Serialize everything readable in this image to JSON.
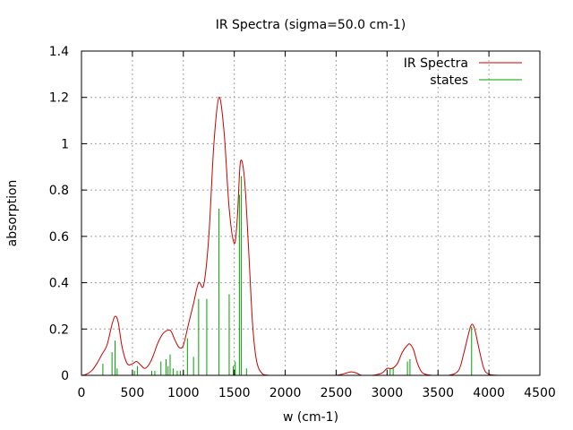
{
  "chart_data": {
    "type": "line",
    "title": "IR Spectra (sigma=50.0 cm-1)",
    "xlabel": "w (cm-1)",
    "ylabel": "absorption",
    "xlim": [
      0,
      4500
    ],
    "ylim": [
      0,
      1.4
    ],
    "xticks": [
      0,
      500,
      1000,
      1500,
      2000,
      2500,
      3000,
      3500,
      4000,
      4500
    ],
    "yticks": [
      0,
      0.2,
      0.4,
      0.6,
      0.8,
      1,
      1.2,
      1.4
    ],
    "xtick_labels": [
      "0",
      "500",
      "1000",
      "1500",
      "2000",
      "2500",
      "3000",
      "3500",
      "4000",
      "4500"
    ],
    "ytick_labels": [
      "0",
      "0.2",
      "0.4",
      "0.6",
      "0.8",
      "1",
      "1.2",
      "1.4"
    ],
    "grid": true,
    "legend_position": "top-right",
    "series": [
      {
        "name": "IR Spectra",
        "style": "line",
        "color": "#cc0000",
        "x": [
          0,
          50,
          100,
          150,
          200,
          250,
          300,
          330,
          360,
          400,
          450,
          500,
          540,
          580,
          620,
          660,
          700,
          750,
          800,
          850,
          880,
          920,
          960,
          1000,
          1050,
          1100,
          1150,
          1200,
          1250,
          1300,
          1350,
          1400,
          1450,
          1500,
          1530,
          1560,
          1600,
          1640,
          1680,
          1720,
          1780,
          1850,
          2000,
          2300,
          2500,
          2600,
          2650,
          2700,
          2750,
          2850,
          2950,
          3000,
          3050,
          3100,
          3150,
          3200,
          3225,
          3260,
          3300,
          3350,
          3450,
          3600,
          3700,
          3750,
          3800,
          3830,
          3860,
          3900,
          3950,
          4000,
          4100,
          4300,
          4500
        ],
        "y": [
          0,
          0.005,
          0.02,
          0.05,
          0.09,
          0.13,
          0.22,
          0.255,
          0.23,
          0.12,
          0.05,
          0.05,
          0.06,
          0.045,
          0.03,
          0.045,
          0.08,
          0.14,
          0.18,
          0.195,
          0.19,
          0.15,
          0.12,
          0.13,
          0.22,
          0.31,
          0.4,
          0.39,
          0.6,
          1.0,
          1.2,
          1.05,
          0.72,
          0.57,
          0.68,
          0.92,
          0.85,
          0.55,
          0.22,
          0.06,
          0.005,
          0,
          0,
          0,
          0,
          0.01,
          0.015,
          0.01,
          0,
          0,
          0.01,
          0.03,
          0.03,
          0.05,
          0.1,
          0.13,
          0.135,
          0.11,
          0.05,
          0.01,
          0,
          0,
          0.02,
          0.09,
          0.18,
          0.22,
          0.2,
          0.12,
          0.03,
          0.005,
          0,
          0,
          0
        ]
      },
      {
        "name": "states",
        "style": "impulses",
        "color": "#00a000",
        "x": [
          210,
          300,
          330,
          350,
          520,
          550,
          690,
          720,
          780,
          830,
          850,
          870,
          900,
          940,
          970,
          1000,
          1040,
          1100,
          1150,
          1230,
          1350,
          1450,
          1490,
          1510,
          1550,
          1570,
          1620,
          3030,
          3060,
          3200,
          3225,
          3830
        ],
        "y": [
          0.05,
          0.1,
          0.15,
          0.03,
          0.02,
          0.04,
          0.02,
          0.02,
          0.06,
          0.07,
          0.04,
          0.09,
          0.03,
          0.02,
          0.02,
          0.02,
          0.16,
          0.08,
          0.33,
          0.33,
          0.72,
          0.35,
          0.04,
          0.06,
          0.78,
          0.86,
          0.03,
          0.03,
          0.03,
          0.06,
          0.07,
          0.21
        ]
      }
    ]
  }
}
